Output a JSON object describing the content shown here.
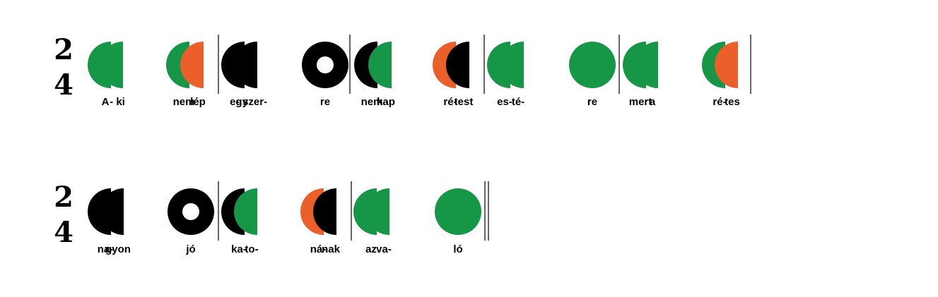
{
  "colors": {
    "green": "#169647",
    "orange": "#ea5f2a",
    "black": "#000000",
    "line": "#000000",
    "background": "#ffffff"
  },
  "time_signature": {
    "top": "2",
    "bottom": "4"
  },
  "note_legend": {
    "half_shape": "half-disc, flat side left",
    "whole_black_ring": "black ring (two beats)",
    "whole_green_disc": "full green disc (two beats)"
  },
  "lines": [
    {
      "time_signature": {
        "top": "2",
        "bottom": "4"
      },
      "measures": [
        {
          "notes": [
            {
              "type": "half",
              "color": "green",
              "lyric": "A"
            },
            {
              "type": "half",
              "color": "green",
              "lyric": "- ki"
            },
            {
              "type": "half",
              "color": "green",
              "lyric": "nem"
            },
            {
              "type": "half",
              "color": "orange",
              "lyric": "lép"
            }
          ],
          "barline_after": "single"
        },
        {
          "notes": [
            {
              "type": "half",
              "color": "black",
              "lyric": "egy"
            },
            {
              "type": "half",
              "color": "black",
              "lyric": "- szer-"
            },
            {
              "type": "ring",
              "color": "black",
              "lyric": "re"
            }
          ],
          "barline_after": "single"
        },
        {
          "notes": [
            {
              "type": "half",
              "color": "black",
              "lyric": "nem"
            },
            {
              "type": "half",
              "color": "green",
              "lyric": "kap"
            },
            {
              "type": "half",
              "color": "orange",
              "lyric": "ré-"
            },
            {
              "type": "half",
              "color": "black",
              "lyric": "test"
            }
          ],
          "barline_after": "single"
        },
        {
          "notes": [
            {
              "type": "half",
              "color": "green",
              "lyric": "es-"
            },
            {
              "type": "half",
              "color": "green",
              "lyric": "té-"
            },
            {
              "type": "disc",
              "color": "green",
              "lyric": "re"
            }
          ],
          "barline_after": "single"
        },
        {
          "notes": [
            {
              "type": "half",
              "color": "green",
              "lyric": "mert"
            },
            {
              "type": "half",
              "color": "green",
              "lyric": "a"
            },
            {
              "type": "half",
              "color": "green",
              "lyric": "ré-"
            },
            {
              "type": "half",
              "color": "orange",
              "lyric": "tes"
            }
          ],
          "barline_after": "single"
        }
      ]
    },
    {
      "time_signature": {
        "top": "2",
        "bottom": "4"
      },
      "measures": [
        {
          "notes": [
            {
              "type": "half",
              "color": "black",
              "lyric": "na-"
            },
            {
              "type": "half",
              "color": "black",
              "lyric": "gyon"
            },
            {
              "type": "ring",
              "color": "black",
              "lyric": "jó"
            }
          ],
          "barline_after": "single"
        },
        {
          "notes": [
            {
              "type": "half",
              "color": "black",
              "lyric": "ka-"
            },
            {
              "type": "half",
              "color": "green",
              "lyric": "to-"
            },
            {
              "type": "half",
              "color": "orange",
              "lyric": "ná-"
            },
            {
              "type": "half",
              "color": "black",
              "lyric": "nak"
            }
          ],
          "barline_after": "single"
        },
        {
          "notes": [
            {
              "type": "half",
              "color": "green",
              "lyric": "az"
            },
            {
              "type": "half",
              "color": "green",
              "lyric": "va-"
            },
            {
              "type": "disc",
              "color": "green",
              "lyric": "ló"
            }
          ],
          "barline_after": "final"
        }
      ]
    }
  ]
}
